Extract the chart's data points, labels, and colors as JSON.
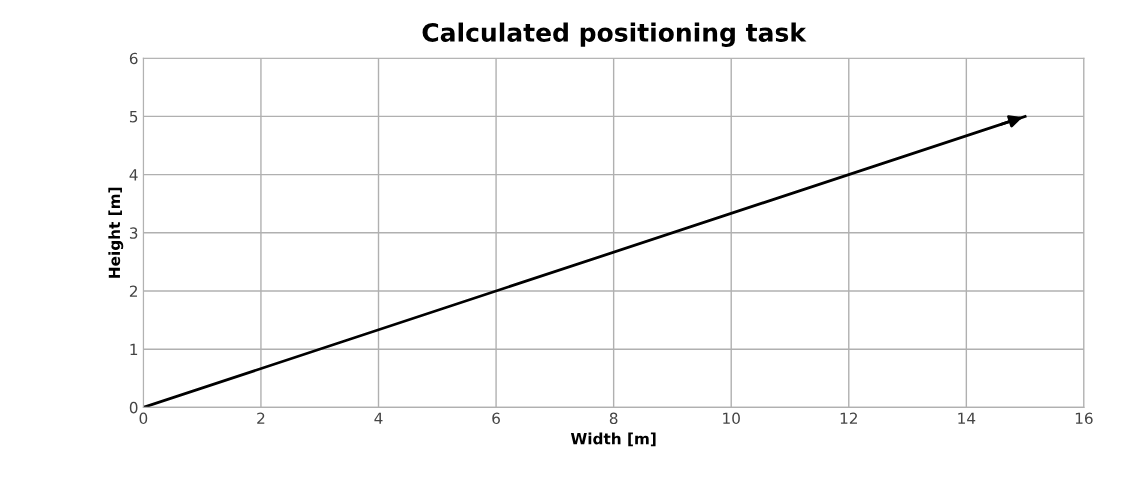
{
  "chart_data": {
    "type": "line",
    "title": "Calculated positioning task",
    "xlabel": "Width [m]",
    "ylabel": "Height [m]",
    "x": [
      0,
      15
    ],
    "series": [
      {
        "color": "#000000",
        "values": [
          0,
          5
        ]
      }
    ],
    "xlim": [
      0,
      16
    ],
    "xticks": [
      0,
      2,
      4,
      6,
      8,
      10,
      12,
      14,
      16
    ],
    "ylim": [
      0,
      6
    ],
    "yticks": [
      0,
      1,
      2,
      3,
      4,
      5,
      6
    ],
    "grid": true,
    "marker": "none",
    "line_style": "solid"
  }
}
